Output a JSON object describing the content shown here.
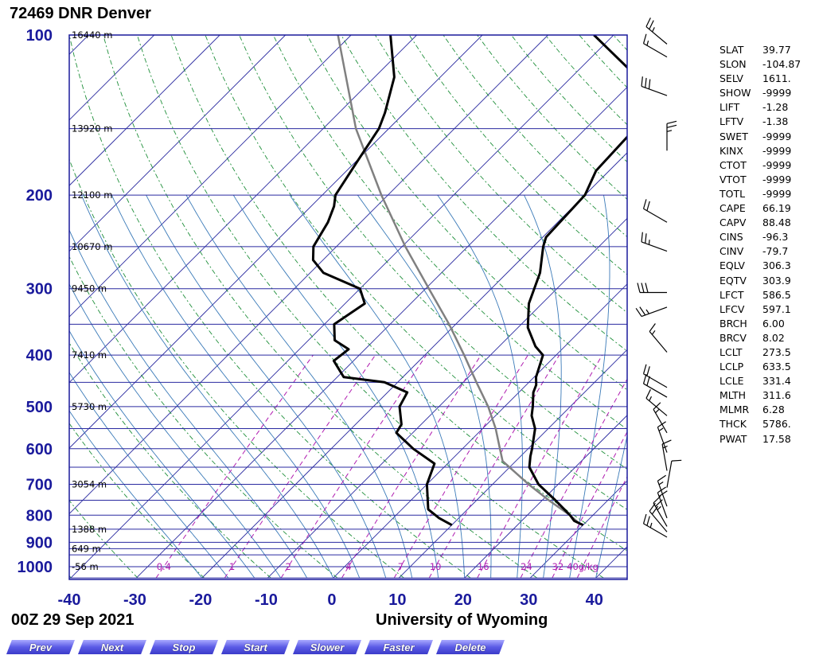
{
  "header": {
    "title": "72469 DNR Denver"
  },
  "footer": {
    "timestamp": "00Z 29 Sep 2021",
    "source": "University of Wyoming"
  },
  "nav": {
    "buttons": [
      "Prev",
      "Next",
      "Stop",
      "Start",
      "Slower",
      "Faster",
      "Delete"
    ]
  },
  "indices": [
    {
      "k": "SLAT",
      "v": "39.77"
    },
    {
      "k": "SLON",
      "v": "-104.87"
    },
    {
      "k": "SELV",
      "v": "1611."
    },
    {
      "k": "SHOW",
      "v": "-9999"
    },
    {
      "k": "LIFT",
      "v": "-1.28"
    },
    {
      "k": "LFTV",
      "v": "-1.38"
    },
    {
      "k": "SWET",
      "v": "-9999"
    },
    {
      "k": "KINX",
      "v": "-9999"
    },
    {
      "k": "CTOT",
      "v": "-9999"
    },
    {
      "k": "VTOT",
      "v": "-9999"
    },
    {
      "k": "TOTL",
      "v": "-9999"
    },
    {
      "k": "CAPE",
      "v": "66.19"
    },
    {
      "k": "CAPV",
      "v": "88.48"
    },
    {
      "k": "CINS",
      "v": "-96.3"
    },
    {
      "k": "CINV",
      "v": "-79.7"
    },
    {
      "k": "EQLV",
      "v": "306.3"
    },
    {
      "k": "EQTV",
      "v": "303.9"
    },
    {
      "k": "LFCT",
      "v": "586.5"
    },
    {
      "k": "LFCV",
      "v": "597.1"
    },
    {
      "k": "BRCH",
      "v": "6.00"
    },
    {
      "k": "BRCV",
      "v": "8.02"
    },
    {
      "k": "LCLT",
      "v": "273.5"
    },
    {
      "k": "LCLP",
      "v": "633.5"
    },
    {
      "k": "LCLE",
      "v": "331.4"
    },
    {
      "k": "MLTH",
      "v": "311.6"
    },
    {
      "k": "MLMR",
      "v": "6.28"
    },
    {
      "k": "THCK",
      "v": "5786."
    },
    {
      "k": "PWAT",
      "v": "17.58"
    }
  ],
  "colors": {
    "axis": "#1a1a9c",
    "isobar": "#2a2aa0",
    "isotherm": "#2a2aa0",
    "dry_adiabat": "#1f8f3a",
    "moist_adiabat": "#3a7ab8",
    "mixing_ratio": "#b01cb0",
    "profile": "#000000",
    "parcel": "#808080"
  },
  "chart_data": {
    "type": "skew-t",
    "x_ticks": [
      -40,
      -30,
      -20,
      -10,
      0,
      10,
      20,
      30,
      40
    ],
    "xlim": [
      -40,
      45
    ],
    "pressure_ticks": [
      100,
      200,
      300,
      400,
      500,
      600,
      700,
      800,
      900,
      1000
    ],
    "plim": [
      100,
      1050
    ],
    "heights": [
      {
        "p": 100,
        "label": "16440 m"
      },
      {
        "p": 150,
        "label": "13920 m"
      },
      {
        "p": 200,
        "label": "12100 m"
      },
      {
        "p": 250,
        "label": "10670 m"
      },
      {
        "p": 300,
        "label": "9450 m"
      },
      {
        "p": 400,
        "label": "7410 m"
      },
      {
        "p": 500,
        "label": "5730 m"
      },
      {
        "p": 700,
        "label": "3054 m"
      },
      {
        "p": 850,
        "label": "1388 m"
      },
      {
        "p": 925,
        "label": "649 m"
      },
      {
        "p": 1000,
        "label": "-56 m"
      }
    ],
    "mixing_ratio_labels": [
      {
        "w": 0.4,
        "label": "0.4"
      },
      {
        "w": 1,
        "label": "1"
      },
      {
        "w": 2,
        "label": "2"
      },
      {
        "w": 4,
        "label": "4"
      },
      {
        "w": 7,
        "label": "7"
      },
      {
        "w": 10,
        "label": "10"
      },
      {
        "w": 16,
        "label": "16"
      },
      {
        "w": 24,
        "label": "24"
      },
      {
        "w": 32,
        "label": "32"
      },
      {
        "w": 40,
        "label": "40g/kg"
      }
    ],
    "temperature": [
      [
        835,
        30.0
      ],
      [
        820,
        28.0
      ],
      [
        800,
        26.5
      ],
      [
        750,
        22.0
      ],
      [
        700,
        17.0
      ],
      [
        650,
        13.0
      ],
      [
        620,
        11.5
      ],
      [
        600,
        10.6
      ],
      [
        550,
        8.0
      ],
      [
        520,
        5.5
      ],
      [
        500,
        4.3
      ],
      [
        470,
        2.2
      ],
      [
        455,
        1.5
      ],
      [
        440,
        0.3
      ],
      [
        400,
        -2.0
      ],
      [
        385,
        -4.5
      ],
      [
        355,
        -8.5
      ],
      [
        320,
        -12.0
      ],
      [
        280,
        -15.0
      ],
      [
        250,
        -18.5
      ],
      [
        240,
        -19.5
      ],
      [
        200,
        -20.0
      ],
      [
        180,
        -22.0
      ],
      [
        150,
        -22.5
      ],
      [
        140,
        -24.0
      ],
      [
        120,
        -30.0
      ],
      [
        100,
        -43.0
      ]
    ],
    "dewpoint": [
      [
        835,
        10.0
      ],
      [
        810,
        7.0
      ],
      [
        780,
        4.0
      ],
      [
        700,
        0.0
      ],
      [
        640,
        -2.0
      ],
      [
        600,
        -7.5
      ],
      [
        560,
        -12.5
      ],
      [
        540,
        -13.0
      ],
      [
        500,
        -16.0
      ],
      [
        470,
        -17.0
      ],
      [
        450,
        -22.0
      ],
      [
        440,
        -29.0
      ],
      [
        410,
        -33.0
      ],
      [
        390,
        -32.5
      ],
      [
        375,
        -36.0
      ],
      [
        350,
        -38.5
      ],
      [
        320,
        -37.0
      ],
      [
        300,
        -40.0
      ],
      [
        280,
        -48.0
      ],
      [
        265,
        -51.5
      ],
      [
        250,
        -53.5
      ],
      [
        225,
        -55.0
      ],
      [
        210,
        -56.5
      ],
      [
        200,
        -58.0
      ],
      [
        170,
        -60.0
      ],
      [
        150,
        -61.5
      ],
      [
        140,
        -63.0
      ],
      [
        120,
        -67.0
      ],
      [
        100,
        -74.0
      ]
    ],
    "parcel": [
      [
        833,
        29.5
      ],
      [
        800,
        26.5
      ],
      [
        750,
        21.0
      ],
      [
        700,
        15.5
      ],
      [
        633,
        8.0
      ],
      [
        600,
        5.7
      ],
      [
        550,
        2.0
      ],
      [
        500,
        -2.5
      ],
      [
        450,
        -8.0
      ],
      [
        400,
        -14.0
      ],
      [
        350,
        -21.0
      ],
      [
        300,
        -29.5
      ],
      [
        250,
        -39.5
      ],
      [
        200,
        -51.0
      ],
      [
        150,
        -65.0
      ],
      [
        100,
        -82.0
      ]
    ],
    "wind_barbs": [
      {
        "p": 104,
        "dir": 310,
        "spd": 25
      },
      {
        "p": 110,
        "dir": 300,
        "spd": 15
      },
      {
        "p": 130,
        "dir": 290,
        "spd": 30
      },
      {
        "p": 165,
        "dir": 0,
        "spd": 25
      },
      {
        "p": 225,
        "dir": 300,
        "spd": 20
      },
      {
        "p": 255,
        "dir": 290,
        "spd": 25
      },
      {
        "p": 305,
        "dir": 270,
        "spd": 30
      },
      {
        "p": 325,
        "dir": 250,
        "spd": 25
      },
      {
        "p": 395,
        "dir": 320,
        "spd": 15
      },
      {
        "p": 460,
        "dir": 300,
        "spd": 20
      },
      {
        "p": 480,
        "dir": 300,
        "spd": 20
      },
      {
        "p": 520,
        "dir": 310,
        "spd": 15
      },
      {
        "p": 560,
        "dir": 330,
        "spd": 15
      },
      {
        "p": 610,
        "dir": 340,
        "spd": 15
      },
      {
        "p": 660,
        "dir": 350,
        "spd": 15
      },
      {
        "p": 710,
        "dir": 10,
        "spd": 10
      },
      {
        "p": 770,
        "dir": 340,
        "spd": 15
      },
      {
        "p": 810,
        "dir": 340,
        "spd": 20
      },
      {
        "p": 840,
        "dir": 330,
        "spd": 25
      },
      {
        "p": 860,
        "dir": 320,
        "spd": 20
      },
      {
        "p": 880,
        "dir": 300,
        "spd": 25
      }
    ]
  }
}
